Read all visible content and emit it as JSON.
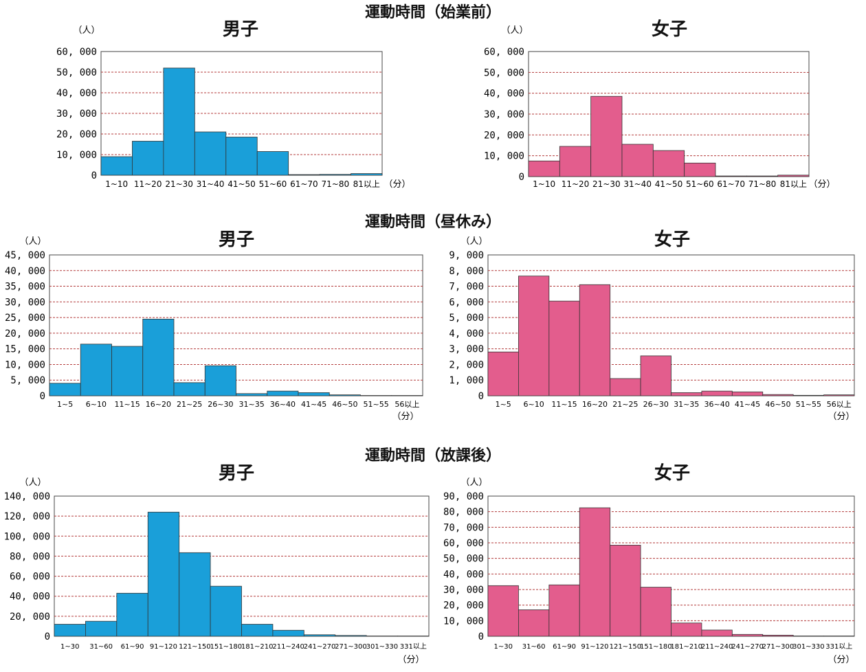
{
  "colors": {
    "male": "#1a9fd9",
    "female": "#e35d8d",
    "grid": "#b33a3a"
  },
  "sections": [
    {
      "title": "運動時間（始業前）"
    },
    {
      "title": "運動時間（昼休み）"
    },
    {
      "title": "運動時間（放課後）"
    }
  ],
  "chart_data": [
    {
      "type": "bar",
      "title": "男子",
      "ylabel": "（人）",
      "xunit": "（分）",
      "categories": [
        "1~10",
        "11~20",
        "21~30",
        "31~40",
        "41~50",
        "51~60",
        "61~70",
        "71~80",
        "81以上"
      ],
      "values": [
        9000,
        16500,
        52000,
        21000,
        18500,
        11500,
        300,
        400,
        800
      ],
      "ylim": [
        0,
        60000
      ],
      "yticks": [
        "0",
        "10, 000",
        "20, 000",
        "30, 000",
        "40, 000",
        "50, 000",
        "60, 000"
      ]
    },
    {
      "type": "bar",
      "title": "女子",
      "ylabel": "（人）",
      "xunit": "（分）",
      "categories": [
        "1~10",
        "11~20",
        "21~30",
        "31~40",
        "41~50",
        "51~60",
        "61~70",
        "71~80",
        "81以上"
      ],
      "values": [
        7500,
        14500,
        38500,
        15500,
        12500,
        6500,
        300,
        300,
        700
      ],
      "ylim": [
        0,
        60000
      ],
      "yticks": [
        "0",
        "10, 000",
        "20, 000",
        "30, 000",
        "40, 000",
        "50, 000",
        "60, 000"
      ]
    },
    {
      "type": "bar",
      "title": "男子",
      "ylabel": "（人）",
      "xunit": "（分）",
      "categories": [
        "1~5",
        "6~10",
        "11~15",
        "16~20",
        "21~25",
        "26~30",
        "31~35",
        "36~40",
        "41~45",
        "46~50",
        "51~55",
        "56以上"
      ],
      "values": [
        4000,
        16500,
        15800,
        24500,
        4200,
        9600,
        700,
        1500,
        1000,
        300,
        100,
        100
      ],
      "ylim": [
        0,
        45000
      ],
      "yticks": [
        "0",
        "5, 000",
        "10, 000",
        "15, 000",
        "20, 000",
        "25, 000",
        "30, 000",
        "35, 000",
        "40, 000",
        "45, 000"
      ]
    },
    {
      "type": "bar",
      "title": "女子",
      "ylabel": "（人）",
      "xunit": "（分）",
      "categories": [
        "1~5",
        "6~10",
        "11~15",
        "16~20",
        "21~25",
        "26~30",
        "31~35",
        "36~40",
        "41~45",
        "46~50",
        "51~55",
        "56以上"
      ],
      "values": [
        2800,
        7650,
        6050,
        7100,
        1100,
        2550,
        200,
        300,
        250,
        80,
        30,
        60
      ],
      "ylim": [
        0,
        9000
      ],
      "yticks": [
        "0",
        "1, 000",
        "2, 000",
        "3, 000",
        "4, 000",
        "5, 000",
        "6, 000",
        "7, 000",
        "8, 000",
        "9, 000"
      ]
    },
    {
      "type": "bar",
      "title": "男子",
      "ylabel": "（人）",
      "xunit": "（分）",
      "categories": [
        "1~30",
        "31~60",
        "61~90",
        "91~120",
        "121~150",
        "151~180",
        "181~210",
        "211~240",
        "241~270",
        "271~300",
        "301~330",
        "331以上"
      ],
      "values": [
        12000,
        15000,
        43000,
        124000,
        83500,
        50000,
        12000,
        6000,
        1500,
        800,
        300,
        300
      ],
      "ylim": [
        0,
        140000
      ],
      "yticks": [
        "0",
        "20, 000",
        "40, 000",
        "60, 000",
        "80, 000",
        "100, 000",
        "120, 000",
        "140, 000"
      ]
    },
    {
      "type": "bar",
      "title": "女子",
      "ylabel": "（人）",
      "xunit": "（分）",
      "categories": [
        "1~30",
        "31~60",
        "61~90",
        "91~120",
        "121~150",
        "151~180",
        "181~210",
        "211~240",
        "241~270",
        "271~300",
        "301~330",
        "331以上"
      ],
      "values": [
        32500,
        17000,
        33000,
        82500,
        58500,
        31500,
        8500,
        4000,
        1200,
        700,
        200,
        200
      ],
      "ylim": [
        0,
        90000
      ],
      "yticks": [
        "0",
        "10, 000",
        "20, 000",
        "30, 000",
        "40, 000",
        "50, 000",
        "60, 000",
        "70, 000",
        "80, 000",
        "90, 000"
      ]
    }
  ]
}
